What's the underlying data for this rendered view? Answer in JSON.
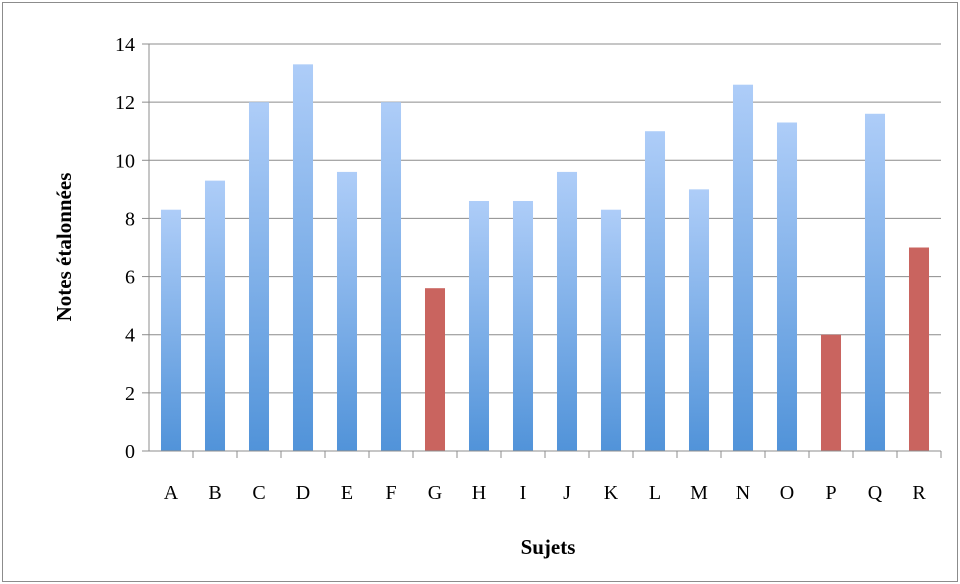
{
  "chart_data": {
    "type": "bar",
    "title": "",
    "xlabel": "Sujets",
    "ylabel": "Notes étalonnées",
    "categories": [
      "A",
      "B",
      "C",
      "D",
      "E",
      "F",
      "G",
      "H",
      "I",
      "J",
      "K",
      "L",
      "M",
      "N",
      "O",
      "P",
      "Q",
      "R"
    ],
    "values": [
      8.3,
      9.3,
      12.0,
      13.3,
      9.6,
      12.0,
      5.6,
      8.6,
      8.6,
      9.6,
      8.3,
      11.0,
      9.0,
      12.6,
      11.3,
      4.0,
      11.6,
      7.0
    ],
    "highlighted": [
      "G",
      "P",
      "R"
    ],
    "ylim": [
      0,
      14
    ],
    "yticks": [
      0,
      2,
      4,
      6,
      8,
      10,
      12,
      14
    ],
    "grid": true,
    "legend": "none"
  },
  "colors": {
    "bar_top": "#aecdf8",
    "bar_bottom": "#5193d9",
    "highlight": "#c9645f",
    "grid": "#8c8c8c",
    "axis": "#8c8c8c"
  }
}
